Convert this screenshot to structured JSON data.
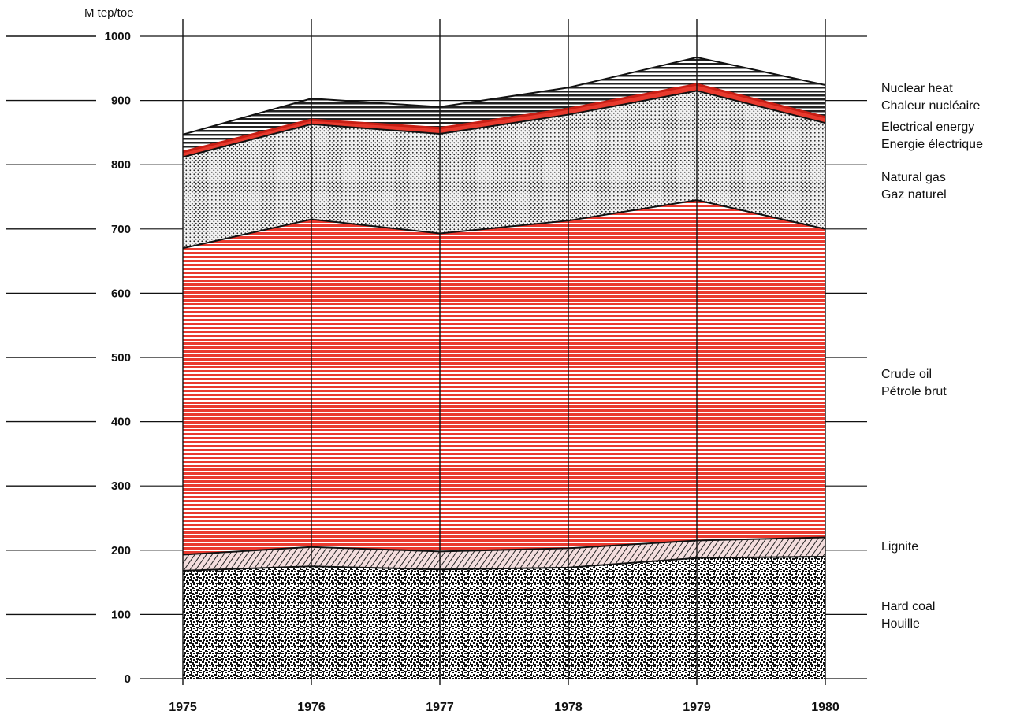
{
  "chart_data": {
    "type": "area",
    "stacked": true,
    "ylabel": "M tep/toe",
    "x": [
      "1975",
      "1976",
      "1977",
      "1978",
      "1979",
      "1980"
    ],
    "ylim": [
      0,
      1000
    ],
    "yticks": [
      "0",
      "100",
      "200",
      "300",
      "400",
      "500",
      "600",
      "700",
      "800",
      "900",
      "1000"
    ],
    "grid": true,
    "legend_position": "right",
    "series": [
      {
        "name": "Hard coal",
        "name_alt": "Houille",
        "color": "#222222",
        "pattern": "speckle",
        "values": [
          168,
          175,
          170,
          173,
          188,
          190
        ]
      },
      {
        "name": "Lignite",
        "name_alt": "",
        "color": "#555555",
        "pattern": "hatch",
        "values": [
          25,
          30,
          28,
          30,
          27,
          30
        ]
      },
      {
        "name": "Crude oil",
        "name_alt": "Pétrole brut",
        "color": "#e8392d",
        "pattern": "horizontal-lines",
        "values": [
          477,
          510,
          495,
          510,
          530,
          480
        ]
      },
      {
        "name": "Natural gas",
        "name_alt": "Gaz naturel",
        "color": "#333333",
        "pattern": "dots",
        "values": [
          142,
          148,
          155,
          165,
          170,
          165
        ]
      },
      {
        "name": "Electrical energy",
        "name_alt": "Energie électrique",
        "color": "#e8392d",
        "pattern": "solid",
        "values": [
          8,
          7,
          9,
          9,
          10,
          9
        ]
      },
      {
        "name": "Nuclear heat",
        "name_alt": "Chaleur nucléaire",
        "color": "#222222",
        "pattern": "stripes",
        "values": [
          27,
          33,
          33,
          33,
          42,
          50
        ]
      }
    ]
  }
}
